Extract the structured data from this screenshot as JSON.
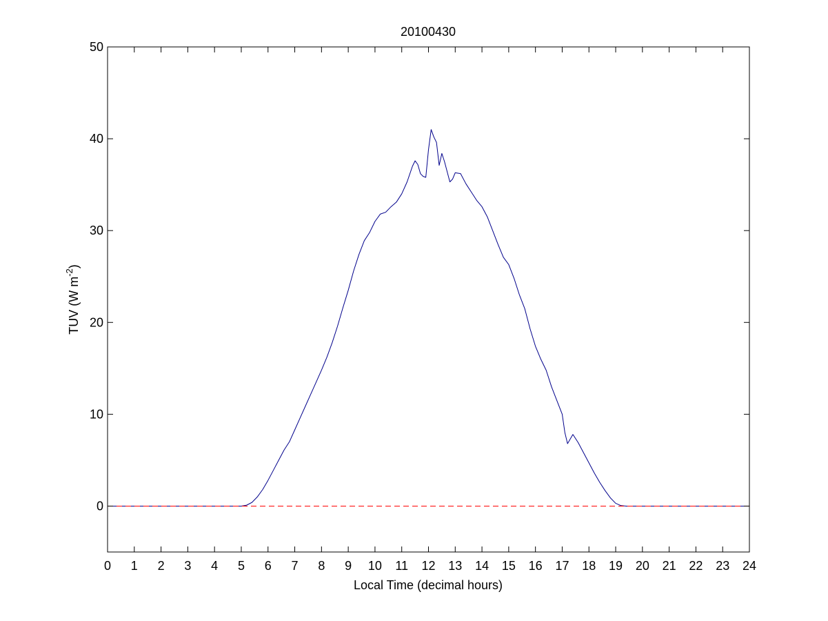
{
  "chart_data": {
    "type": "line",
    "title": "20100430",
    "xlabel": "Local Time (decimal hours)",
    "ylabel": "TUV (W m",
    "ylabel_sup": "-2",
    "ylabel_end": ")",
    "xlim": [
      0,
      24
    ],
    "ylim": [
      -5,
      50
    ],
    "xticks": [
      0,
      1,
      2,
      3,
      4,
      5,
      6,
      7,
      8,
      9,
      10,
      11,
      12,
      13,
      14,
      15,
      16,
      17,
      18,
      19,
      20,
      21,
      22,
      23,
      24
    ],
    "yticks": [
      0,
      10,
      20,
      30,
      40,
      50
    ],
    "grid": false,
    "series": [
      {
        "color": "#00008b",
        "style": "solid",
        "x": [
          0,
          5.0,
          5.2,
          5.4,
          5.6,
          5.8,
          6.0,
          6.2,
          6.4,
          6.6,
          6.8,
          7.0,
          7.2,
          7.4,
          7.6,
          7.8,
          8.0,
          8.2,
          8.4,
          8.6,
          8.8,
          9.0,
          9.2,
          9.4,
          9.6,
          9.8,
          10.0,
          10.2,
          10.4,
          10.6,
          10.8,
          11.0,
          11.2,
          11.4,
          11.5,
          11.6,
          11.7,
          11.8,
          11.9,
          12.0,
          12.1,
          12.2,
          12.3,
          12.4,
          12.5,
          12.6,
          12.7,
          12.8,
          12.9,
          13.0,
          13.2,
          13.4,
          13.6,
          13.8,
          14.0,
          14.2,
          14.4,
          14.6,
          14.8,
          15.0,
          15.2,
          15.4,
          15.6,
          15.8,
          16.0,
          16.2,
          16.4,
          16.6,
          16.8,
          17.0,
          17.1,
          17.2,
          17.3,
          17.4,
          17.6,
          17.8,
          18.0,
          18.2,
          18.4,
          18.6,
          18.8,
          19.0,
          19.2,
          19.4,
          24
        ],
        "y": [
          0,
          0,
          0.1,
          0.4,
          1.0,
          1.8,
          2.8,
          3.9,
          5.0,
          6.1,
          7.0,
          8.3,
          9.6,
          10.9,
          12.2,
          13.5,
          14.8,
          16.2,
          17.8,
          19.6,
          21.6,
          23.5,
          25.6,
          27.4,
          28.9,
          29.8,
          31.0,
          31.8,
          32.0,
          32.6,
          33.1,
          34.0,
          35.3,
          37.0,
          37.6,
          37.2,
          36.2,
          35.9,
          35.8,
          38.8,
          41.0,
          40.2,
          39.6,
          37.1,
          38.4,
          37.5,
          36.4,
          35.3,
          35.6,
          36.3,
          36.2,
          35.1,
          34.2,
          33.3,
          32.6,
          31.5,
          30.0,
          28.5,
          27.1,
          26.3,
          24.8,
          23.0,
          21.5,
          19.3,
          17.4,
          16.0,
          14.8,
          13.0,
          11.5,
          10.0,
          8.0,
          6.8,
          7.3,
          7.8,
          6.9,
          5.8,
          4.7,
          3.6,
          2.6,
          1.7,
          0.9,
          0.3,
          0.05,
          0,
          0
        ]
      },
      {
        "color": "#ff0000",
        "style": "dashed",
        "x": [
          0,
          24
        ],
        "y": [
          0,
          0
        ]
      }
    ]
  }
}
